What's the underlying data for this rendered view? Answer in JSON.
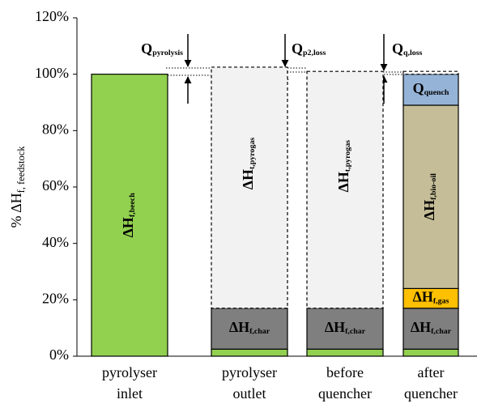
{
  "chart_data": {
    "type": "stacked_bar",
    "y_label": {
      "text": "% ΔH",
      "sub": "f, feedstock"
    },
    "categories": [
      [
        "pyrolyser",
        "inlet"
      ],
      [
        "pyrolyser",
        "outlet"
      ],
      [
        "before",
        "quencher"
      ],
      [
        "after",
        "quencher"
      ]
    ],
    "ylim": [
      0,
      120
    ],
    "yticks": [
      {
        "value": 0,
        "label": "0%"
      },
      {
        "value": 20,
        "label": "20%"
      },
      {
        "value": 40,
        "label": "40%"
      },
      {
        "value": 60,
        "label": "60%"
      },
      {
        "value": 80,
        "label": "80%"
      },
      {
        "value": 100,
        "label": "100%"
      },
      {
        "value": 120,
        "label": "120%"
      }
    ],
    "series": [
      {
        "color": "#92d050",
        "values": [
          100,
          2.5,
          2.5,
          2.5
        ],
        "labels": [
          {
            "text": "ΔH",
            "sub": "f,beech"
          },
          null,
          null,
          null
        ],
        "label_color": "#ffffff"
      },
      {
        "color": "#7f7f7f",
        "values": [
          null,
          14.5,
          14.5,
          14.5
        ],
        "labels": [
          null,
          {
            "text": "ΔH",
            "sub": "f,char"
          },
          {
            "text": "ΔH",
            "sub": "f,char"
          },
          {
            "text": "ΔH",
            "sub": "f,char"
          }
        ],
        "label_color": "#ffffff"
      },
      {
        "color": "#ffc000",
        "values": [
          null,
          null,
          null,
          7
        ],
        "labels": [
          null,
          null,
          null,
          {
            "text": "ΔH",
            "sub": "f,gas"
          }
        ],
        "label_color": "#000000"
      },
      {
        "color": "#f2f2f2",
        "dashed": true,
        "values": [
          null,
          85.5,
          84,
          null
        ],
        "labels": [
          null,
          {
            "text": "ΔH",
            "sub": "t,pyrogas"
          },
          {
            "text": "ΔH",
            "sub": "t,pyrogas"
          },
          null
        ],
        "label_color": "#000000"
      },
      {
        "color": "#c4bd97",
        "values": [
          null,
          null,
          null,
          65
        ],
        "labels": [
          null,
          null,
          null,
          {
            "text": "ΔH",
            "sub": "f,bio-oil"
          }
        ],
        "label_color": "#ffffff"
      },
      {
        "color": "#95b3d7",
        "values": [
          null,
          null,
          null,
          11
        ],
        "labels": [
          null,
          null,
          null,
          {
            "text": "Q",
            "sub": "quench"
          }
        ],
        "label_color": "#ffffff"
      },
      {
        "color": "#ffffff",
        "dashed": true,
        "values": [
          null,
          null,
          null,
          1
        ],
        "labels": [
          null,
          null,
          null,
          null
        ],
        "label_color": "#000000"
      }
    ],
    "annotations": [
      {
        "text": "Q",
        "sub": "pyrolysis"
      },
      {
        "text": "Q",
        "sub": "p2,loss"
      },
      {
        "text": "Q",
        "sub": "q,loss"
      }
    ]
  }
}
